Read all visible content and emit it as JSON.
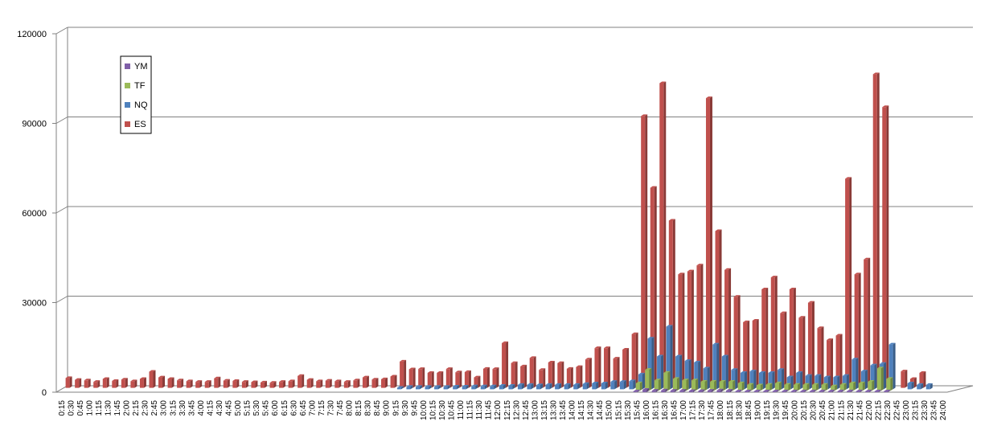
{
  "chart_data": {
    "type": "bar",
    "title": "",
    "xlabel": "",
    "ylabel": "",
    "ylim": [
      0,
      120000
    ],
    "yticks": [
      0,
      30000,
      60000,
      90000,
      120000
    ],
    "grid": true,
    "legend_position": "top-left",
    "categories": [
      "0:15",
      "0:30",
      "0:45",
      "1:00",
      "1:15",
      "1:30",
      "1:45",
      "2:00",
      "2:15",
      "2:30",
      "2:45",
      "3:00",
      "3:15",
      "3:30",
      "3:45",
      "4:00",
      "4:15",
      "4:30",
      "4:45",
      "5:00",
      "5:15",
      "5:30",
      "5:45",
      "6:00",
      "6:15",
      "6:30",
      "6:45",
      "7:00",
      "7:15",
      "7:30",
      "7:45",
      "8:00",
      "8:15",
      "8:30",
      "8:45",
      "9:00",
      "9:15",
      "9:30",
      "9:45",
      "10:00",
      "10:15",
      "10:30",
      "10:45",
      "11:00",
      "11:15",
      "11:30",
      "11:45",
      "12:00",
      "12:15",
      "12:30",
      "12:45",
      "13:00",
      "13:15",
      "13:30",
      "13:45",
      "14:00",
      "14:15",
      "14:30",
      "14:45",
      "15:00",
      "15:15",
      "15:30",
      "15:45",
      "16:00",
      "16:15",
      "16:30",
      "16:45",
      "17:00",
      "17:15",
      "17:30",
      "17:45",
      "18:00",
      "18:15",
      "18:30",
      "18:45",
      "19:00",
      "19:15",
      "19:30",
      "19:45",
      "20:00",
      "20:15",
      "20:30",
      "20:45",
      "21:00",
      "21:15",
      "21:30",
      "21:45",
      "22:00",
      "22:15",
      "22:30",
      "22:45",
      "23:00",
      "23:15",
      "23:30",
      "23:45",
      "24:00"
    ],
    "series": [
      {
        "name": "YM",
        "color": "#7F5FA8",
        "values": [
          0,
          0,
          0,
          0,
          0,
          0,
          0,
          0,
          0,
          0,
          0,
          0,
          0,
          0,
          0,
          0,
          0,
          0,
          0,
          0,
          0,
          0,
          0,
          0,
          0,
          0,
          0,
          0,
          0,
          0,
          0,
          0,
          0,
          0,
          0,
          0,
          0,
          0,
          0,
          0,
          0,
          0,
          0,
          0,
          0,
          0,
          0,
          0,
          0,
          0,
          0,
          0,
          0,
          0,
          0,
          0,
          0,
          0,
          0,
          0,
          0,
          0,
          300,
          800,
          500,
          600,
          500,
          500,
          400,
          400,
          500,
          600,
          500,
          300,
          300,
          300,
          300,
          300,
          300,
          300,
          300,
          300,
          300,
          300,
          300,
          300,
          300,
          300,
          300,
          300,
          0,
          0,
          0,
          0,
          0,
          0
        ]
      },
      {
        "name": "TF",
        "color": "#9BBB59",
        "values": [
          0,
          0,
          0,
          0,
          0,
          0,
          0,
          0,
          0,
          0,
          0,
          0,
          0,
          0,
          0,
          0,
          0,
          0,
          0,
          0,
          0,
          0,
          0,
          0,
          0,
          0,
          0,
          0,
          0,
          0,
          0,
          0,
          0,
          0,
          0,
          0,
          0,
          0,
          0,
          0,
          0,
          0,
          0,
          0,
          0,
          0,
          0,
          0,
          0,
          0,
          0,
          0,
          0,
          0,
          0,
          0,
          0,
          0,
          0,
          0,
          0,
          0,
          2500,
          7000,
          3500,
          6000,
          4000,
          3500,
          3500,
          3000,
          3000,
          3000,
          3000,
          2500,
          2000,
          1800,
          2000,
          2500,
          2000,
          2000,
          2000,
          2000,
          2000,
          1500,
          2000,
          2500,
          2500,
          3000,
          7500,
          4000,
          0,
          0,
          0,
          0,
          0,
          0
        ]
      },
      {
        "name": "NQ",
        "color": "#4F81BD",
        "values": [
          0,
          0,
          0,
          0,
          0,
          0,
          0,
          0,
          0,
          0,
          0,
          0,
          0,
          0,
          0,
          0,
          0,
          0,
          0,
          0,
          0,
          0,
          0,
          0,
          0,
          0,
          0,
          0,
          0,
          0,
          0,
          0,
          0,
          0,
          0,
          0,
          500,
          800,
          800,
          800,
          800,
          800,
          900,
          900,
          1000,
          1000,
          1000,
          1200,
          1200,
          1500,
          1500,
          1400,
          1500,
          1500,
          1500,
          1500,
          1800,
          2000,
          2000,
          2500,
          2500,
          2700,
          5000,
          17000,
          11000,
          21000,
          11000,
          9500,
          9000,
          7000,
          15000,
          11000,
          6500,
          5500,
          6000,
          5500,
          5500,
          6500,
          4000,
          5500,
          4500,
          4500,
          4000,
          4000,
          4500,
          10000,
          6000,
          8000,
          8500,
          15000,
          0,
          2000,
          1500,
          1500,
          0,
          0
        ]
      },
      {
        "name": "ES",
        "color": "#C0504D",
        "values": [
          3300,
          2700,
          2500,
          2000,
          3000,
          2300,
          2800,
          2200,
          3000,
          5400,
          3500,
          3000,
          2500,
          2200,
          2000,
          2000,
          3200,
          2400,
          2300,
          2000,
          1900,
          1800,
          1700,
          2000,
          2200,
          4000,
          2700,
          2200,
          2400,
          2200,
          2000,
          2500,
          3500,
          2800,
          2900,
          3800,
          8800,
          6200,
          6300,
          5000,
          5000,
          6300,
          5200,
          5300,
          3500,
          6400,
          6300,
          15000,
          8300,
          7200,
          10000,
          6000,
          8500,
          8300,
          6400,
          7000,
          9500,
          13300,
          13300,
          9800,
          12800,
          18000,
          91000,
          67000,
          102000,
          56000,
          38000,
          39000,
          41000,
          97000,
          52500,
          39500,
          30500,
          22000,
          22500,
          33000,
          37000,
          25000,
          33000,
          23500,
          28500,
          20000,
          16000,
          17500,
          70000,
          38000,
          43000,
          105000,
          94000,
          0,
          5500,
          3000,
          5000,
          0,
          0,
          0
        ]
      }
    ]
  }
}
